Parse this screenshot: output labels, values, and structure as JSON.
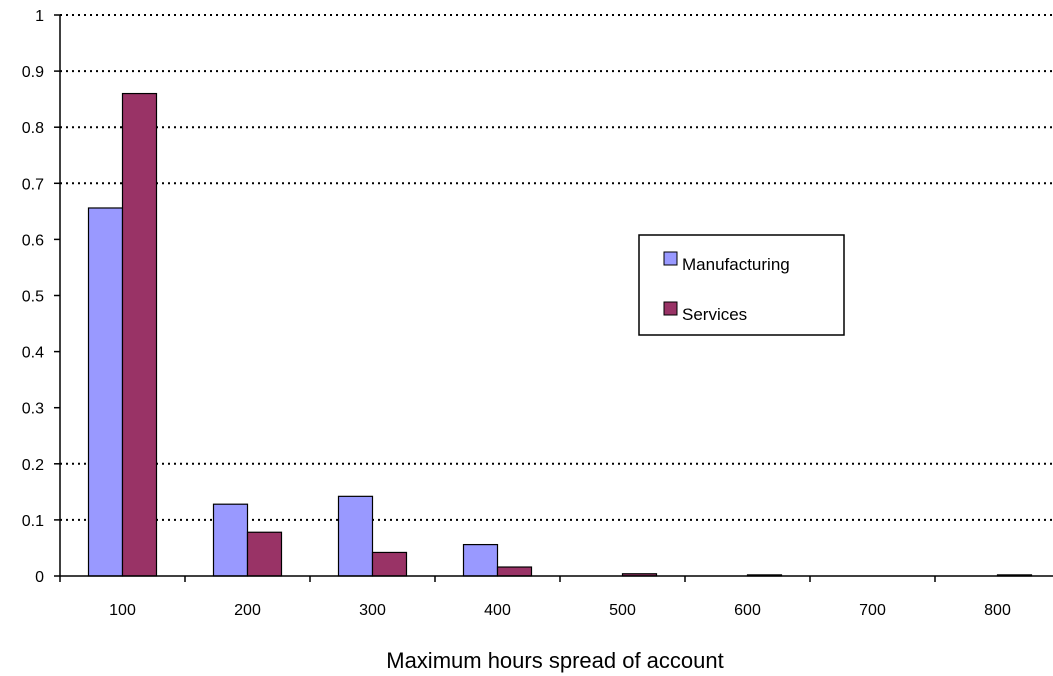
{
  "chart_data": {
    "type": "bar",
    "categories": [
      "100",
      "200",
      "300",
      "400",
      "500",
      "600",
      "700",
      "800"
    ],
    "series": [
      {
        "name": "Manufacturing",
        "color": "#9999FF",
        "values": [
          0.656,
          0.128,
          0.142,
          0.056,
          0.0,
          0.0,
          0.0,
          0.0
        ]
      },
      {
        "name": "Services",
        "color": "#993366",
        "values": [
          0.86,
          0.078,
          0.042,
          0.016,
          0.004,
          0.002,
          0.0,
          0.002
        ]
      }
    ],
    "title": "",
    "xlabel": "Maximum hours spread of account",
    "ylabel": "",
    "ylim": [
      0,
      1
    ],
    "yticks": [
      "0",
      "0.1",
      "0.2",
      "0.3",
      "0.4",
      "0.5",
      "0.6",
      "0.7",
      "0.8",
      "0.9",
      "1"
    ],
    "gridlines_at": [
      0.1,
      0.2,
      0.7,
      0.8,
      0.9,
      1.0
    ],
    "grid": "dotted",
    "legend_position": "right"
  }
}
